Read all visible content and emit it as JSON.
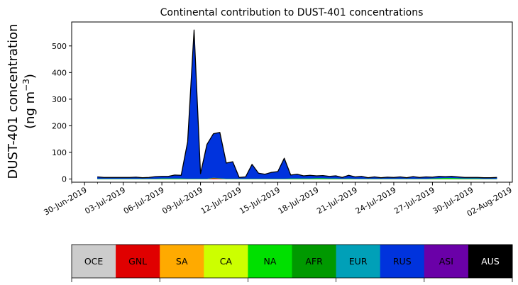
{
  "chart_data": {
    "type": "area",
    "stacked": true,
    "title": "Continental contribution to DUST-401 concentrations",
    "ylabel_line1": "DUST-401 concentration",
    "ylabel_line2_prefix": "(ng m",
    "ylabel_line2_sup": "−3",
    "ylabel_line2_suffix": ")",
    "xlabel": "",
    "ylim": [
      -12,
      590
    ],
    "yticks": [
      0,
      100,
      200,
      300,
      400,
      500
    ],
    "xlim_days": [
      -1.0,
      33.2
    ],
    "xtick_labels": [
      "30-Jun-2019",
      "03-Jul-2019",
      "06-Jul-2019",
      "09-Jul-2019",
      "12-Jul-2019",
      "15-Jul-2019",
      "18-Jul-2019",
      "21-Jul-2019",
      "24-Jul-2019",
      "27-Jul-2019",
      "30-Jul-2019",
      "02-Aug-2019"
    ],
    "xtick_days": [
      0,
      3,
      6,
      9,
      12,
      15,
      18,
      21,
      24,
      27,
      30,
      33
    ],
    "x_days": [
      1.0,
      1.5,
      2.0,
      2.5,
      3.0,
      3.5,
      4.0,
      4.5,
      5.0,
      5.5,
      6.0,
      6.5,
      7.0,
      7.5,
      8.0,
      8.5,
      9.0,
      9.5,
      10.0,
      10.5,
      11.0,
      11.5,
      12.0,
      12.5,
      13.0,
      13.5,
      14.0,
      14.5,
      15.0,
      15.5,
      16.0,
      16.5,
      17.0,
      17.5,
      18.0,
      18.5,
      19.0,
      19.5,
      20.0,
      20.5,
      21.0,
      21.5,
      22.0,
      22.5,
      23.0,
      23.5,
      24.0,
      24.5,
      25.0,
      25.5,
      26.0,
      26.5,
      27.0,
      27.5,
      28.0,
      28.5,
      29.0,
      29.5,
      30.0,
      30.5,
      31.0,
      31.5,
      32.0
    ],
    "total": [
      8,
      6,
      6,
      6,
      6,
      6,
      7,
      5,
      6,
      9,
      10,
      10,
      15,
      14,
      140,
      560,
      20,
      130,
      170,
      175,
      60,
      65,
      6,
      8,
      55,
      22,
      18,
      25,
      28,
      78,
      15,
      18,
      12,
      14,
      12,
      13,
      10,
      12,
      6,
      14,
      8,
      10,
      5,
      8,
      5,
      7,
      6,
      8,
      5,
      9,
      6,
      8,
      7,
      10,
      9,
      10,
      8,
      6,
      6,
      6,
      5,
      5,
      6
    ],
    "series": [
      {
        "name": "OCE",
        "color": "#cccccc",
        "values": [
          0,
          0,
          0,
          0,
          0,
          0,
          0,
          0,
          0,
          0,
          0,
          0,
          0,
          0,
          0,
          0,
          0,
          0,
          0,
          0,
          0,
          0,
          0,
          0,
          0,
          0,
          0,
          0,
          0,
          0,
          0,
          0,
          0,
          0,
          0,
          0,
          0,
          0,
          0,
          0,
          0,
          0,
          0,
          0,
          0,
          0,
          0,
          0,
          0,
          0,
          0,
          0,
          0,
          0,
          0,
          0,
          0,
          0,
          0,
          0,
          0,
          0,
          0
        ]
      },
      {
        "name": "GNL",
        "color": "#e00000",
        "values": [
          0,
          0,
          0,
          0,
          0,
          0,
          0,
          0,
          0,
          0,
          0,
          0,
          0,
          0,
          0,
          0,
          0,
          0,
          4,
          2,
          0,
          0,
          0,
          0,
          0,
          0,
          0,
          0,
          0,
          0,
          0,
          0,
          0,
          0,
          0,
          0,
          0,
          0,
          0,
          0,
          0,
          0,
          0,
          0,
          0,
          0,
          0,
          0,
          0,
          0,
          0,
          0,
          0,
          0,
          0,
          0,
          0,
          0,
          0,
          0,
          0,
          0,
          0
        ]
      },
      {
        "name": "SA",
        "color": "#ffaa00",
        "values": [
          0,
          0,
          0,
          0,
          0,
          0,
          0,
          0,
          0,
          0,
          0,
          0,
          0,
          0,
          0,
          0,
          0,
          0,
          0,
          0,
          0,
          0,
          0,
          0,
          0,
          0,
          0,
          0,
          0,
          0,
          0,
          0,
          0,
          0,
          0,
          0,
          0,
          0,
          0,
          0,
          0,
          0,
          0,
          0,
          0,
          0,
          0,
          0,
          0,
          0,
          0,
          0,
          0,
          0,
          0,
          0,
          0,
          0,
          0,
          0,
          0,
          0,
          0
        ]
      },
      {
        "name": "CA",
        "color": "#ccff00",
        "values": [
          0,
          0,
          0,
          0,
          0,
          0,
          0,
          0,
          0,
          0,
          0,
          0,
          0,
          0,
          0,
          0,
          0,
          0,
          0,
          0,
          0,
          0,
          0,
          0,
          0,
          0,
          0,
          0,
          0,
          0,
          0,
          0,
          0,
          0,
          0,
          0,
          0,
          0,
          0,
          0,
          0,
          0,
          0,
          0,
          0,
          0,
          0,
          0,
          0,
          0,
          0,
          0,
          0,
          0,
          0,
          0,
          0,
          0,
          0,
          0,
          0,
          0,
          0
        ]
      },
      {
        "name": "NA",
        "color": "#00e000",
        "values": [
          1,
          1,
          1,
          1,
          1,
          1,
          1,
          1,
          1,
          1,
          2,
          2,
          2,
          2,
          1,
          1,
          1,
          1,
          1,
          1,
          1,
          1,
          1,
          1,
          1,
          1,
          1,
          1,
          1,
          1,
          2,
          2,
          2,
          2,
          3,
          3,
          2,
          2,
          1,
          2,
          1,
          1,
          1,
          1,
          1,
          1,
          1,
          1,
          1,
          1,
          1,
          1,
          2,
          3,
          4,
          4,
          3,
          2,
          2,
          2,
          1,
          1,
          1
        ]
      },
      {
        "name": "AFR",
        "color": "#009900",
        "values": [
          0,
          0,
          0,
          0,
          0,
          0,
          0,
          0,
          0,
          0,
          0,
          0,
          0,
          0,
          0,
          0,
          0,
          0,
          0,
          0,
          0,
          0,
          0,
          0,
          0,
          0,
          0,
          0,
          0,
          0,
          0,
          0,
          0,
          0,
          0,
          0,
          0,
          0,
          0,
          0,
          0,
          0,
          0,
          0,
          0,
          0,
          0,
          0,
          0,
          0,
          0,
          0,
          0,
          0,
          0,
          0,
          0,
          0,
          0,
          0,
          0,
          0,
          0
        ]
      },
      {
        "name": "EUR",
        "color": "#00a0b8",
        "values": [
          1,
          1,
          1,
          1,
          1,
          1,
          1,
          1,
          1,
          1,
          1,
          1,
          1,
          1,
          1,
          1,
          1,
          1,
          1,
          1,
          1,
          1,
          1,
          1,
          1,
          1,
          1,
          1,
          1,
          1,
          1,
          1,
          1,
          1,
          1,
          1,
          1,
          1,
          1,
          1,
          1,
          1,
          1,
          1,
          1,
          1,
          1,
          1,
          1,
          1,
          1,
          1,
          1,
          1,
          1,
          1,
          1,
          1,
          1,
          1,
          1,
          1,
          1
        ]
      },
      {
        "name": "RUS",
        "color": "#0033dd",
        "values": [
          6,
          4,
          4,
          4,
          4,
          4,
          5,
          3,
          4,
          7,
          7,
          7,
          12,
          11,
          138,
          558,
          18,
          128,
          164,
          171,
          58,
          63,
          4,
          6,
          53,
          20,
          16,
          23,
          26,
          76,
          12,
          15,
          9,
          11,
          8,
          9,
          7,
          9,
          4,
          11,
          6,
          8,
          3,
          6,
          3,
          5,
          4,
          6,
          3,
          7,
          4,
          6,
          4,
          6,
          4,
          5,
          4,
          3,
          3,
          3,
          3,
          3,
          4
        ]
      },
      {
        "name": "ASI",
        "color": "#6a00a8",
        "values": [
          0,
          0,
          0,
          0,
          0,
          0,
          0,
          0,
          0,
          0,
          0,
          0,
          0,
          0,
          0,
          0,
          0,
          0,
          0,
          0,
          0,
          0,
          0,
          0,
          0,
          0,
          0,
          0,
          0,
          0,
          0,
          0,
          0,
          0,
          0,
          0,
          0,
          0,
          0,
          0,
          0,
          0,
          0,
          0,
          0,
          0,
          0,
          0,
          0,
          0,
          0,
          0,
          0,
          0,
          0,
          0,
          0,
          0,
          0,
          0,
          0,
          0,
          0
        ]
      },
      {
        "name": "AUS",
        "color": "#000000",
        "values": [
          0,
          0,
          0,
          0,
          0,
          0,
          0,
          0,
          0,
          0,
          0,
          0,
          0,
          0,
          0,
          0,
          0,
          0,
          0,
          0,
          0,
          0,
          0,
          0,
          0,
          0,
          0,
          0,
          0,
          0,
          0,
          0,
          0,
          0,
          0,
          0,
          0,
          0,
          0,
          0,
          0,
          0,
          0,
          0,
          0,
          0,
          0,
          0,
          0,
          0,
          0,
          0,
          0,
          0,
          0,
          0,
          0,
          0,
          0,
          0,
          0,
          0,
          0
        ]
      }
    ],
    "legend": {
      "placement": "bottom",
      "items": [
        {
          "label": "OCE",
          "color": "#cccccc",
          "text_color": "#000000"
        },
        {
          "label": "GNL",
          "color": "#e00000",
          "text_color": "#000000"
        },
        {
          "label": "SA",
          "color": "#ffaa00",
          "text_color": "#000000"
        },
        {
          "label": "CA",
          "color": "#ccff00",
          "text_color": "#000000"
        },
        {
          "label": "NA",
          "color": "#00e000",
          "text_color": "#000000"
        },
        {
          "label": "AFR",
          "color": "#009900",
          "text_color": "#000000"
        },
        {
          "label": "EUR",
          "color": "#00a0b8",
          "text_color": "#000000"
        },
        {
          "label": "RUS",
          "color": "#0033dd",
          "text_color": "#000000"
        },
        {
          "label": "ASI",
          "color": "#6a00a8",
          "text_color": "#000000"
        },
        {
          "label": "AUS",
          "color": "#000000",
          "text_color": "#ffffff"
        }
      ]
    },
    "grid": false
  }
}
